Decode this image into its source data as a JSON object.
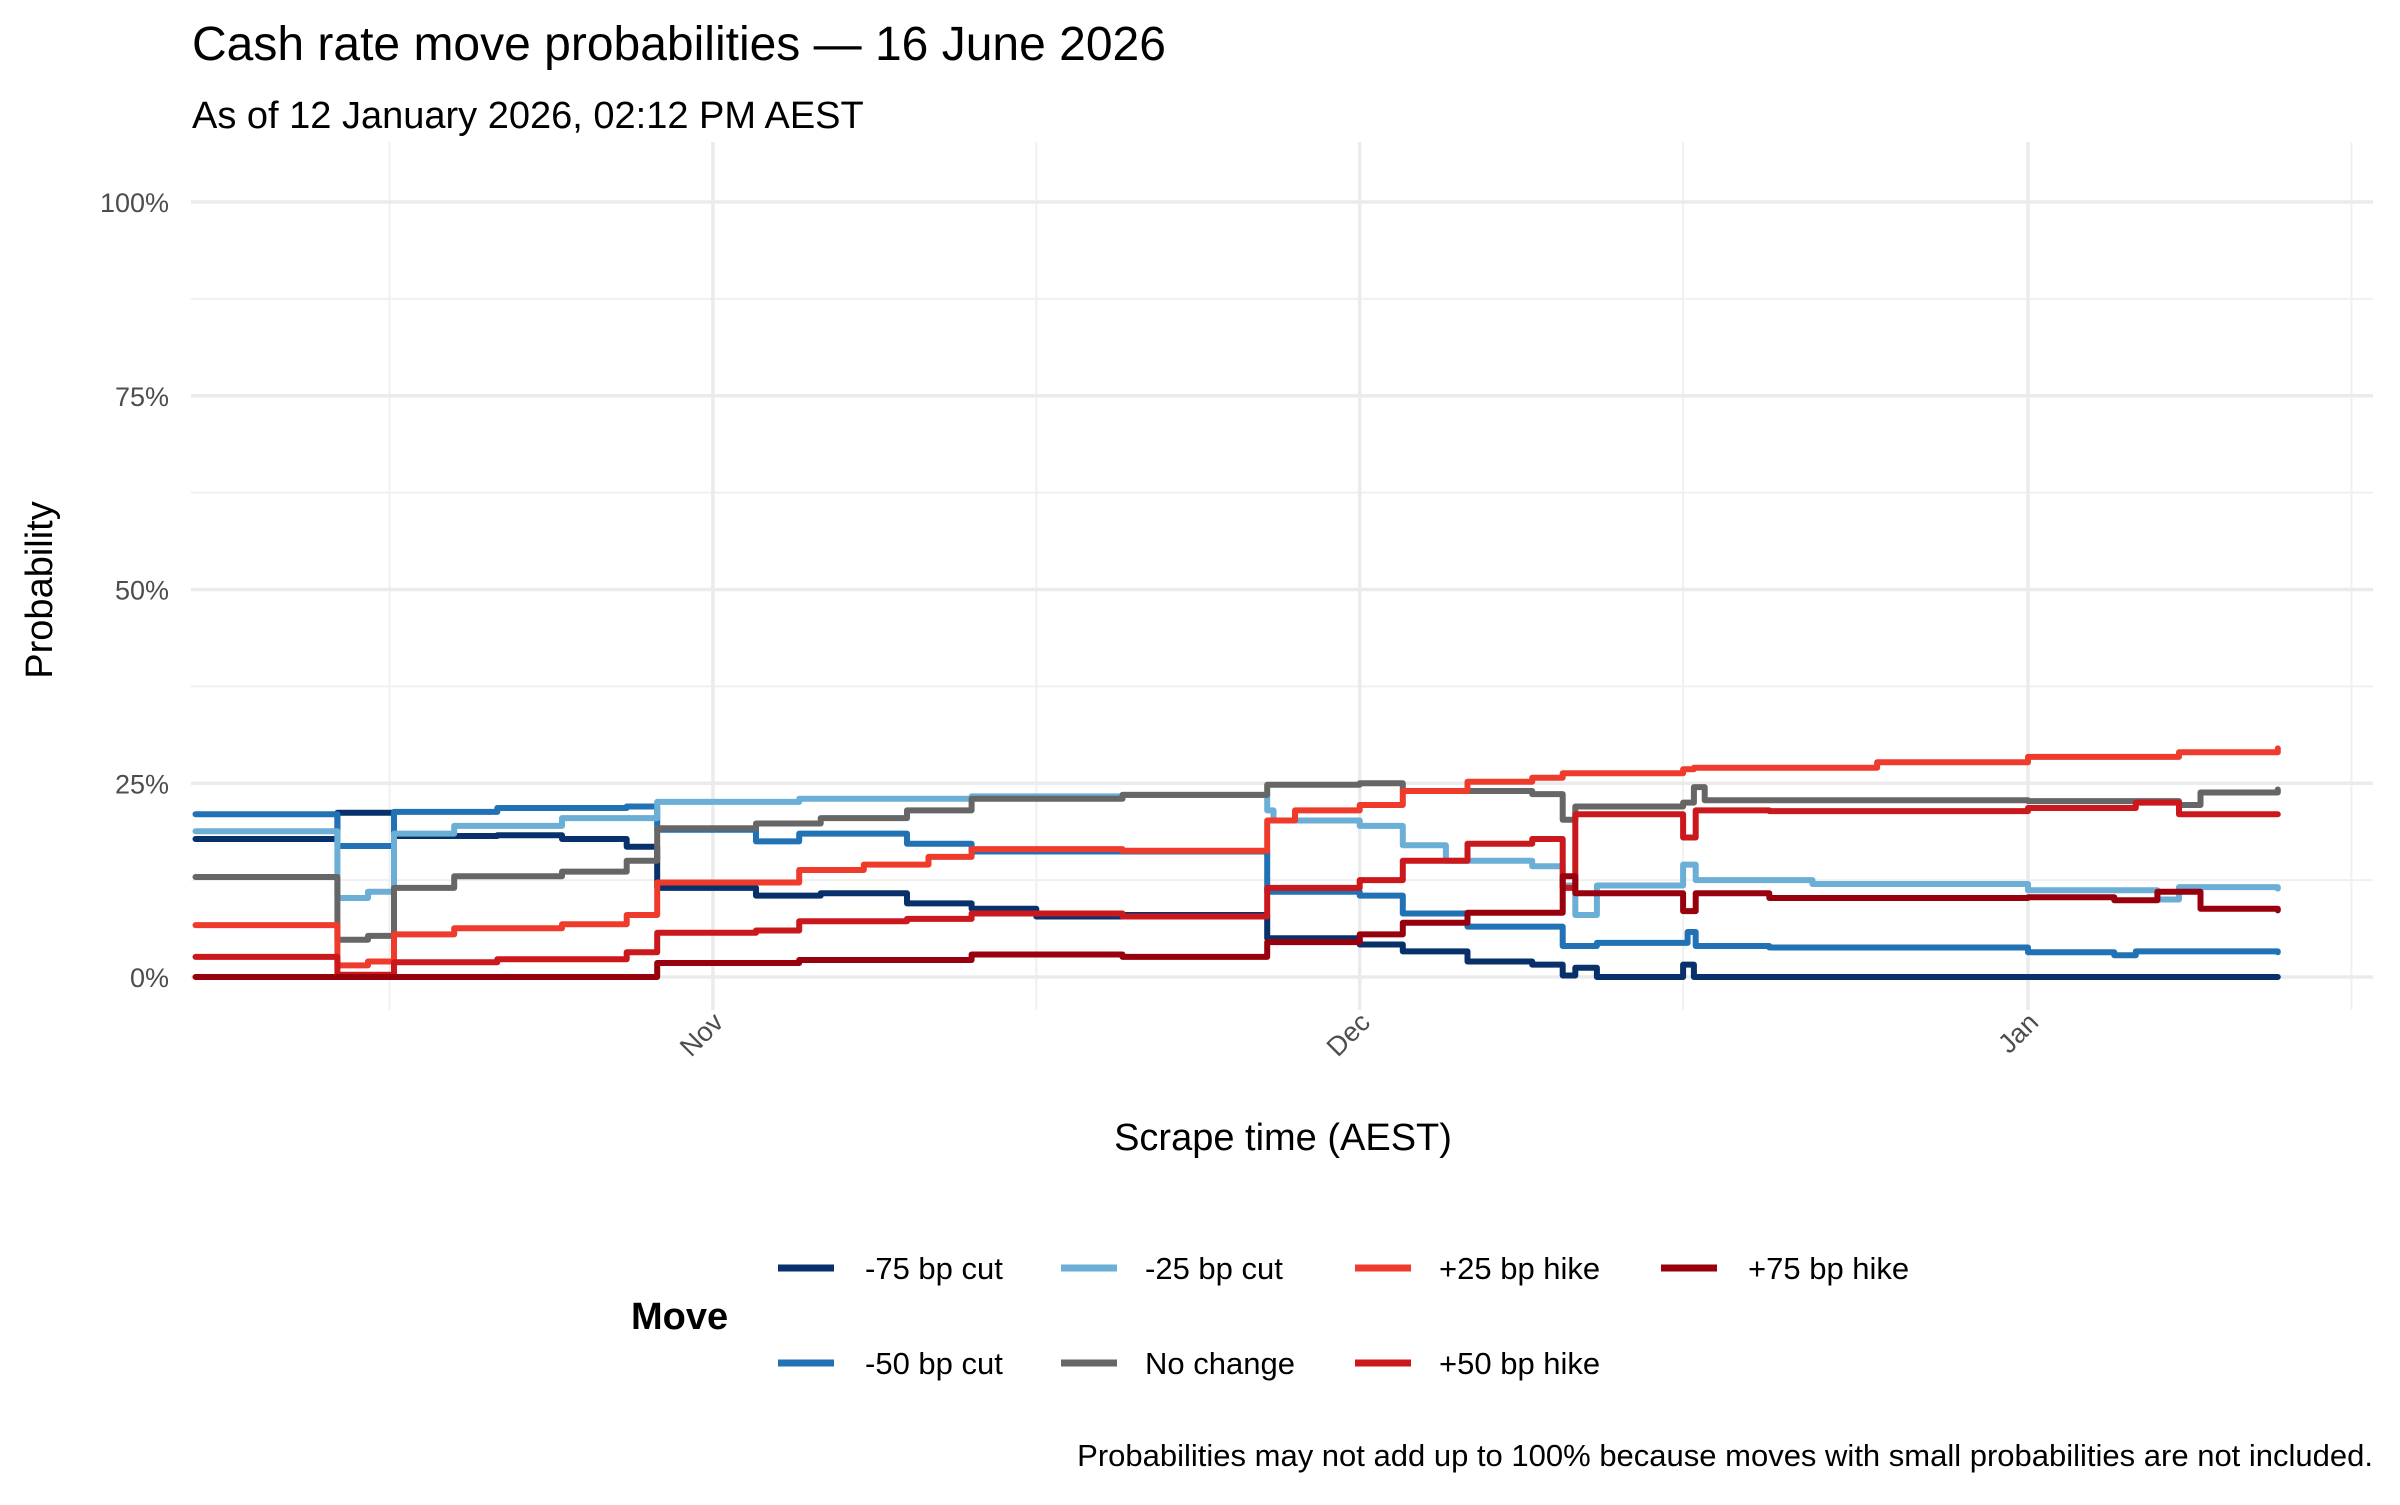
{
  "chart_data": {
    "type": "line",
    "step": true,
    "title": "Cash rate move probabilities — 16 June 2026",
    "subtitle": "As of 12 January 2026, 02:12 PM AEST",
    "xlabel": "Scrape time (AEST)",
    "ylabel": "Probability",
    "caption": "Probabilities may not add up to 100% because moves with small probabilities are not included.",
    "xlim": [
      "2025-10-07T19:00",
      "2026-01-17T00:00"
    ],
    "ylim": [
      0,
      100
    ],
    "grid": true,
    "x_ticks": [
      {
        "date": "2025-11-01",
        "label": "Nov"
      },
      {
        "date": "2025-12-01",
        "label": "Dec"
      },
      {
        "date": "2026-01-01",
        "label": "Jan"
      }
    ],
    "x_minor_ticks": [
      "2025-10-17",
      "2025-11-16",
      "2025-12-16",
      "2026-01-16"
    ],
    "y_ticks": [
      {
        "value": 0,
        "label": "0%"
      },
      {
        "value": 25,
        "label": "25%"
      },
      {
        "value": 50,
        "label": "50%"
      },
      {
        "value": 75,
        "label": "75%"
      },
      {
        "value": 100,
        "label": "100%"
      }
    ],
    "y_minor_ticks": [
      12.5,
      37.5,
      62.5,
      87.5
    ],
    "legend": {
      "title": "Move",
      "position": "bottom"
    },
    "series": [
      {
        "name": "-75 bp cut",
        "color": "#08306b",
        "points": [
          [
            "2025-10-08T00:00",
            17.8
          ],
          [
            "2025-10-14T14:00",
            21.2
          ],
          [
            "2025-10-17T05:00",
            18.2
          ],
          [
            "2025-10-22T00:00",
            18.3
          ],
          [
            "2025-10-25T00:00",
            17.8
          ],
          [
            "2025-10-28T00:00",
            16.8
          ],
          [
            "2025-10-29T10:00",
            11.5
          ],
          [
            "2025-11-03T00:00",
            10.5
          ],
          [
            "2025-11-06T00:00",
            10.8
          ],
          [
            "2025-11-10T00:00",
            9.5
          ],
          [
            "2025-11-13T00:00",
            8.8
          ],
          [
            "2025-11-16T00:00",
            7.8
          ],
          [
            "2025-11-20T00:00",
            8.0
          ],
          [
            "2025-11-26T17:00",
            5.0
          ],
          [
            "2025-12-01T00:00",
            4.2
          ],
          [
            "2025-12-03T00:00",
            3.3
          ],
          [
            "2025-12-06T00:00",
            2.0
          ],
          [
            "2025-12-09T00:00",
            1.6
          ],
          [
            "2025-12-10T10:00",
            0.2
          ],
          [
            "2025-12-11T00:00",
            1.2
          ],
          [
            "2025-12-12T00:00",
            0
          ],
          [
            "2025-12-16T00:00",
            1.6
          ],
          [
            "2025-12-16T12:00",
            0
          ],
          [
            "2026-01-12T14:00",
            0
          ]
        ]
      },
      {
        "name": "-50 bp cut",
        "color": "#2171b5",
        "points": [
          [
            "2025-10-08T00:00",
            21.0
          ],
          [
            "2025-10-14T14:00",
            16.9
          ],
          [
            "2025-10-17T05:00",
            21.3
          ],
          [
            "2025-10-22T00:00",
            21.8
          ],
          [
            "2025-10-28T00:00",
            22.0
          ],
          [
            "2025-10-29T10:00",
            19.0
          ],
          [
            "2025-11-03T00:00",
            17.5
          ],
          [
            "2025-11-05T00:00",
            18.5
          ],
          [
            "2025-11-10T00:00",
            17.2
          ],
          [
            "2025-11-13T00:00",
            16.2
          ],
          [
            "2025-11-26T17:00",
            11.0
          ],
          [
            "2025-12-01T00:00",
            10.5
          ],
          [
            "2025-12-03T00:00",
            8.2
          ],
          [
            "2025-12-06T00:00",
            6.5
          ],
          [
            "2025-12-10T10:00",
            4.0
          ],
          [
            "2025-12-12T00:00",
            4.4
          ],
          [
            "2025-12-16T05:00",
            5.8
          ],
          [
            "2025-12-16T14:00",
            4.0
          ],
          [
            "2025-12-20T00:00",
            3.8
          ],
          [
            "2026-01-01T00:00",
            3.2
          ],
          [
            "2026-01-05T00:00",
            2.8
          ],
          [
            "2026-01-06T00:00",
            3.3
          ],
          [
            "2026-01-12T14:00",
            3.2
          ]
        ]
      },
      {
        "name": "-25 bp cut",
        "color": "#6baed6",
        "points": [
          [
            "2025-10-08T00:00",
            18.8
          ],
          [
            "2025-10-14T14:00",
            10.2
          ],
          [
            "2025-10-16T00:00",
            11.0
          ],
          [
            "2025-10-17T05:00",
            18.5
          ],
          [
            "2025-10-20T00:00",
            19.5
          ],
          [
            "2025-10-25T00:00",
            20.5
          ],
          [
            "2025-10-29T10:00",
            22.6
          ],
          [
            "2025-11-05T00:00",
            23.0
          ],
          [
            "2025-11-13T00:00",
            23.3
          ],
          [
            "2025-11-20T00:00",
            23.5
          ],
          [
            "2025-11-26T17:00",
            21.5
          ],
          [
            "2025-11-27T00:00",
            20.2
          ],
          [
            "2025-12-01T00:00",
            19.5
          ],
          [
            "2025-12-03T00:00",
            17.0
          ],
          [
            "2025-12-05T00:00",
            15.0
          ],
          [
            "2025-12-09T00:00",
            14.3
          ],
          [
            "2025-12-10T10:00",
            11.8
          ],
          [
            "2025-12-11T00:00",
            8.0
          ],
          [
            "2025-12-12T00:00",
            11.8
          ],
          [
            "2025-12-16T00:00",
            14.5
          ],
          [
            "2025-12-16T14:00",
            12.5
          ],
          [
            "2025-12-22T00:00",
            12.0
          ],
          [
            "2026-01-01T00:00",
            11.2
          ],
          [
            "2026-01-07T00:00",
            10.0
          ],
          [
            "2026-01-08T00:00",
            11.6
          ],
          [
            "2026-01-12T14:00",
            11.4
          ]
        ]
      },
      {
        "name": "No change",
        "color": "#666666",
        "points": [
          [
            "2025-10-08T00:00",
            12.9
          ],
          [
            "2025-10-14T14:00",
            4.8
          ],
          [
            "2025-10-16T00:00",
            5.3
          ],
          [
            "2025-10-17T05:00",
            11.5
          ],
          [
            "2025-10-20T00:00",
            13.0
          ],
          [
            "2025-10-25T00:00",
            13.6
          ],
          [
            "2025-10-28T00:00",
            15.0
          ],
          [
            "2025-10-29T10:00",
            19.2
          ],
          [
            "2025-11-03T00:00",
            19.8
          ],
          [
            "2025-11-06T00:00",
            20.5
          ],
          [
            "2025-11-10T00:00",
            21.5
          ],
          [
            "2025-11-13T00:00",
            23.0
          ],
          [
            "2025-11-20T00:00",
            23.5
          ],
          [
            "2025-11-26T17:00",
            24.8
          ],
          [
            "2025-12-01T00:00",
            25.0
          ],
          [
            "2025-12-03T00:00",
            24.0
          ],
          [
            "2025-12-09T00:00",
            23.6
          ],
          [
            "2025-12-10T10:00",
            20.3
          ],
          [
            "2025-12-11T00:00",
            22.0
          ],
          [
            "2025-12-16T00:00",
            22.5
          ],
          [
            "2025-12-16T12:00",
            24.5
          ],
          [
            "2025-12-17T00:00",
            22.8
          ],
          [
            "2026-01-01T00:00",
            22.7
          ],
          [
            "2026-01-08T00:00",
            22.2
          ],
          [
            "2026-01-09T00:00",
            23.8
          ],
          [
            "2026-01-12T14:00",
            24.2
          ]
        ]
      },
      {
        "name": "+25 bp hike",
        "color": "#ef3b2c",
        "points": [
          [
            "2025-10-08T00:00",
            6.7
          ],
          [
            "2025-10-14T14:00",
            1.5
          ],
          [
            "2025-10-16T00:00",
            2.0
          ],
          [
            "2025-10-17T05:00",
            5.5
          ],
          [
            "2025-10-20T00:00",
            6.3
          ],
          [
            "2025-10-25T00:00",
            6.8
          ],
          [
            "2025-10-28T00:00",
            8.0
          ],
          [
            "2025-10-29T10:00",
            12.2
          ],
          [
            "2025-11-05T00:00",
            13.8
          ],
          [
            "2025-11-08T00:00",
            14.5
          ],
          [
            "2025-11-11T00:00",
            15.5
          ],
          [
            "2025-11-13T00:00",
            16.5
          ],
          [
            "2025-11-20T00:00",
            16.3
          ],
          [
            "2025-11-26T17:00",
            20.2
          ],
          [
            "2025-11-28T00:00",
            21.5
          ],
          [
            "2025-12-01T00:00",
            22.2
          ],
          [
            "2025-12-03T00:00",
            24.0
          ],
          [
            "2025-12-06T00:00",
            25.2
          ],
          [
            "2025-12-09T00:00",
            25.7
          ],
          [
            "2025-12-10T10:00",
            26.3
          ],
          [
            "2025-12-16T00:00",
            26.8
          ],
          [
            "2025-12-16T12:00",
            27.0
          ],
          [
            "2025-12-25T00:00",
            27.7
          ],
          [
            "2026-01-01T00:00",
            28.4
          ],
          [
            "2026-01-08T00:00",
            29.0
          ],
          [
            "2026-01-12T14:00",
            29.5
          ]
        ]
      },
      {
        "name": "+50 bp hike",
        "color": "#cb181d",
        "points": [
          [
            "2025-10-08T00:00",
            2.6
          ],
          [
            "2025-10-14T14:00",
            0.3
          ],
          [
            "2025-10-17T05:00",
            1.9
          ],
          [
            "2025-10-22T00:00",
            2.3
          ],
          [
            "2025-10-28T00:00",
            3.2
          ],
          [
            "2025-10-29T10:00",
            5.7
          ],
          [
            "2025-11-03T00:00",
            6.0
          ],
          [
            "2025-11-05T00:00",
            7.2
          ],
          [
            "2025-11-10T00:00",
            7.5
          ],
          [
            "2025-11-13T00:00",
            8.2
          ],
          [
            "2025-11-20T00:00",
            7.8
          ],
          [
            "2025-11-26T17:00",
            11.5
          ],
          [
            "2025-12-01T00:00",
            12.5
          ],
          [
            "2025-12-03T00:00",
            15.0
          ],
          [
            "2025-12-06T00:00",
            17.2
          ],
          [
            "2025-12-09T00:00",
            17.8
          ],
          [
            "2025-12-10T10:00",
            11.5
          ],
          [
            "2025-12-11T00:00",
            21.0
          ],
          [
            "2025-12-16T00:00",
            18.0
          ],
          [
            "2025-12-16T14:00",
            21.5
          ],
          [
            "2025-12-20T00:00",
            21.4
          ],
          [
            "2026-01-01T00:00",
            21.8
          ],
          [
            "2026-01-06T00:00",
            22.5
          ],
          [
            "2026-01-08T00:00",
            21.0
          ],
          [
            "2026-01-12T14:00",
            21.0
          ]
        ]
      },
      {
        "name": "+75 bp hike",
        "color": "#99000d",
        "points": [
          [
            "2025-10-08T00:00",
            0
          ],
          [
            "2025-10-29T10:00",
            1.8
          ],
          [
            "2025-11-05T00:00",
            2.2
          ],
          [
            "2025-11-13T00:00",
            2.9
          ],
          [
            "2025-11-20T00:00",
            2.6
          ],
          [
            "2025-11-26T17:00",
            4.5
          ],
          [
            "2025-12-01T00:00",
            5.5
          ],
          [
            "2025-12-03T00:00",
            7.0
          ],
          [
            "2025-12-06T00:00",
            8.3
          ],
          [
            "2025-12-10T10:00",
            13.0
          ],
          [
            "2025-12-11T00:00",
            10.8
          ],
          [
            "2025-12-16T00:00",
            8.5
          ],
          [
            "2025-12-16T14:00",
            10.8
          ],
          [
            "2025-12-20T00:00",
            10.2
          ],
          [
            "2026-01-01T00:00",
            10.3
          ],
          [
            "2026-01-05T00:00",
            9.9
          ],
          [
            "2026-01-07T00:00",
            11.0
          ],
          [
            "2026-01-09T00:00",
            8.8
          ],
          [
            "2026-01-12T14:00",
            8.6
          ]
        ]
      }
    ]
  }
}
